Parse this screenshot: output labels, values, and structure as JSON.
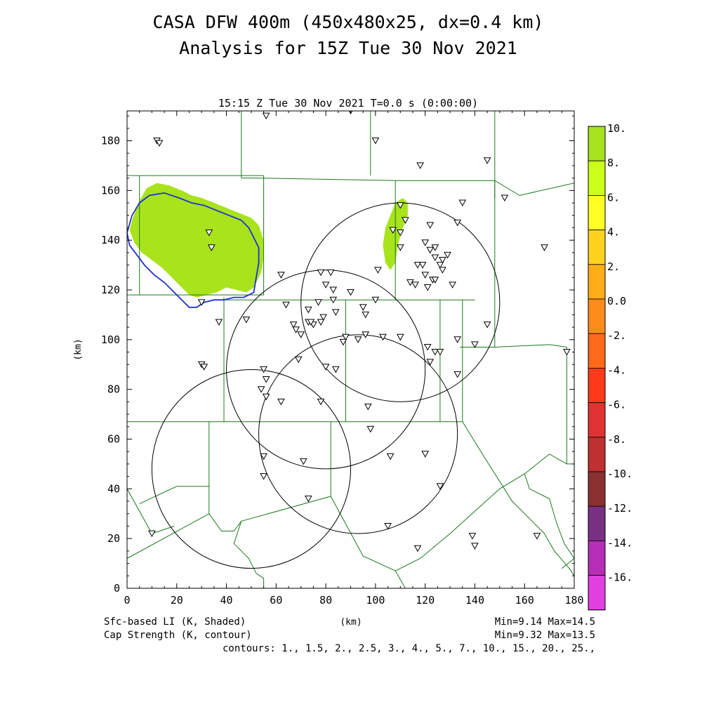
{
  "title_line1": "CASA DFW 400m (450x480x25, dx=0.4 km)",
  "title_line2": "Analysis for 15Z Tue 30 Nov 2021",
  "plot_time_label": "15:15 Z Tue 30 Nov 2021    T=0.0 s (0:00:00)",
  "footer": {
    "shaded_label": "Sfc-based LI (K, Shaded)",
    "contour_label": "Cap Strength (K, contour)",
    "x_unit_label": "(km)",
    "shaded_minmax": "Min=9.14 Max=14.5",
    "contour_minmax": "Min=9.32 Max=13.5",
    "contours_list": "contours: 1., 1.5, 2., 2.5, 3., 4., 5., 7., 10., 15., 20., 25.,"
  },
  "colors": {
    "shaded_fill": "#a8e31c",
    "cap_contour": "#1f2fd6",
    "county_lines": "#1b7a1b",
    "radar_rings": "#000000"
  },
  "chart_data": {
    "type": "map",
    "xlabel": "",
    "ylabel": "(km)",
    "xlim": [
      0,
      180
    ],
    "ylim": [
      0,
      192
    ],
    "x_ticks": [
      0,
      20,
      40,
      60,
      80,
      100,
      120,
      140,
      160,
      180
    ],
    "y_ticks": [
      0,
      20,
      40,
      60,
      80,
      100,
      120,
      140,
      160,
      180
    ],
    "colorbar": {
      "levels": [
        "10.",
        "8.",
        "6.",
        "4.",
        "2.",
        "0.0",
        "-2.",
        "-4.",
        "-6.",
        "-8.",
        "-10.",
        "-12.",
        "-14.",
        "-16."
      ],
      "colors": [
        "#a6e21e",
        "#ccff1a",
        "#ffff26",
        "#ffd21f",
        "#ffae1a",
        "#ff8c1a",
        "#ff6a1a",
        "#ff3a1a",
        "#e03232",
        "#bf3030",
        "#8a3030",
        "#7a3082",
        "#b52eb5",
        "#e040e0"
      ]
    },
    "radar_rings": [
      {
        "cx": 110,
        "cy": 115,
        "r": 40
      },
      {
        "cx": 80,
        "cy": 88,
        "r": 40
      },
      {
        "cx": 93,
        "cy": 62,
        "r": 40
      },
      {
        "cx": 50,
        "cy": 48,
        "r": 40
      }
    ],
    "shaded_areas": [
      {
        "value": 10,
        "points": [
          [
            2,
            148
          ],
          [
            5,
            156
          ],
          [
            8,
            161
          ],
          [
            12,
            163
          ],
          [
            17,
            162
          ],
          [
            22,
            160
          ],
          [
            26,
            158
          ],
          [
            30,
            157
          ],
          [
            35,
            155
          ],
          [
            40,
            153
          ],
          [
            45,
            151
          ],
          [
            50,
            149
          ],
          [
            53,
            146
          ],
          [
            55,
            140
          ],
          [
            55,
            133
          ],
          [
            54,
            127
          ],
          [
            51,
            121
          ],
          [
            48,
            119
          ],
          [
            44,
            120
          ],
          [
            40,
            121
          ],
          [
            36,
            119
          ],
          [
            32,
            118
          ],
          [
            28,
            117
          ],
          [
            25,
            118
          ],
          [
            22,
            121
          ],
          [
            18,
            125
          ],
          [
            14,
            129
          ],
          [
            10,
            132
          ],
          [
            6,
            135
          ],
          [
            3,
            139
          ],
          [
            1,
            144
          ]
        ]
      },
      {
        "value": 10,
        "points": [
          [
            106,
            150
          ],
          [
            108,
            155
          ],
          [
            111,
            157
          ],
          [
            113,
            155
          ],
          [
            113,
            150
          ],
          [
            111,
            145
          ],
          [
            109,
            138
          ],
          [
            108,
            131
          ],
          [
            106,
            128
          ],
          [
            104,
            131
          ],
          [
            103,
            138
          ],
          [
            104,
            145
          ]
        ]
      }
    ],
    "cap_contour": {
      "level": "10.",
      "points": [
        [
          0,
          143
        ],
        [
          2,
          150
        ],
        [
          5,
          155
        ],
        [
          9,
          158
        ],
        [
          15,
          159
        ],
        [
          21,
          157
        ],
        [
          26,
          155
        ],
        [
          31,
          154
        ],
        [
          36,
          152
        ],
        [
          41,
          150
        ],
        [
          46,
          148
        ],
        [
          49,
          145
        ],
        [
          51,
          141
        ],
        [
          53,
          137
        ],
        [
          53,
          131
        ],
        [
          52,
          125
        ],
        [
          51,
          119
        ],
        [
          47,
          117
        ],
        [
          43,
          117
        ],
        [
          39,
          116
        ],
        [
          35,
          116
        ],
        [
          31,
          115
        ],
        [
          28,
          113
        ],
        [
          25,
          113
        ],
        [
          22,
          116
        ],
        [
          19,
          119
        ],
        [
          15,
          123
        ],
        [
          11,
          126
        ],
        [
          7,
          130
        ],
        [
          4,
          134
        ],
        [
          1,
          138
        ],
        [
          0,
          143
        ]
      ]
    },
    "county_boundaries": [
      [
        [
          0,
          118
        ],
        [
          55,
          118
        ]
      ],
      [
        [
          0,
          166
        ],
        [
          55,
          166
        ]
      ],
      [
        [
          55,
          118
        ],
        [
          55,
          166
        ]
      ],
      [
        [
          5,
          166
        ],
        [
          5,
          118
        ]
      ],
      [
        [
          46,
          192
        ],
        [
          46,
          165
        ],
        [
          52,
          165
        ]
      ],
      [
        [
          52,
          165
        ],
        [
          108,
          164
        ],
        [
          108,
          116
        ]
      ],
      [
        [
          39,
          117
        ],
        [
          39,
          67
        ],
        [
          88,
          67
        ],
        [
          88,
          116
        ]
      ],
      [
        [
          39,
          116
        ],
        [
          140,
          116
        ]
      ],
      [
        [
          0,
          67
        ],
        [
          39,
          67
        ]
      ],
      [
        [
          88,
          67
        ],
        [
          135,
          67
        ]
      ],
      [
        [
          135,
          67
        ],
        [
          135,
          116
        ]
      ],
      [
        [
          108,
          164
        ],
        [
          148,
          164
        ],
        [
          158,
          158
        ],
        [
          180,
          163
        ]
      ],
      [
        [
          98,
          192
        ],
        [
          98,
          166
        ]
      ],
      [
        [
          148,
          192
        ],
        [
          148,
          157
        ]
      ],
      [
        [
          126,
          116
        ],
        [
          126,
          67
        ]
      ],
      [
        [
          148,
          164
        ],
        [
          148,
          97
        ],
        [
          170,
          98
        ],
        [
          177,
          97
        ]
      ],
      [
        [
          134,
          97
        ],
        [
          148,
          97
        ]
      ],
      [
        [
          177,
          97
        ],
        [
          177,
          50
        ],
        [
          180,
          50
        ]
      ],
      [
        [
          135,
          67
        ],
        [
          143,
          54
        ],
        [
          150,
          43
        ],
        [
          155,
          35
        ],
        [
          162,
          28
        ],
        [
          168,
          22
        ],
        [
          172,
          15
        ],
        [
          178,
          8
        ],
        [
          180,
          5
        ]
      ],
      [
        [
          33,
          67
        ],
        [
          33,
          41
        ],
        [
          20,
          41
        ],
        [
          5,
          34
        ]
      ],
      [
        [
          33,
          41
        ],
        [
          33,
          30
        ],
        [
          0,
          12
        ]
      ],
      [
        [
          33,
          30
        ],
        [
          38,
          23
        ],
        [
          43,
          23
        ],
        [
          46,
          27
        ],
        [
          82,
          37
        ],
        [
          95,
          13
        ],
        [
          108,
          7
        ]
      ],
      [
        [
          82,
          37
        ],
        [
          82,
          67
        ]
      ],
      [
        [
          46,
          27
        ],
        [
          43,
          18
        ],
        [
          49,
          12
        ],
        [
          52,
          6
        ],
        [
          55,
          4
        ],
        [
          55,
          0
        ]
      ],
      [
        [
          0,
          40
        ],
        [
          10,
          22
        ],
        [
          19,
          25
        ]
      ],
      [
        [
          108,
          7
        ],
        [
          118,
          12
        ],
        [
          130,
          22
        ],
        [
          140,
          31
        ],
        [
          150,
          40
        ],
        [
          160,
          46
        ],
        [
          170,
          54
        ],
        [
          177,
          50
        ]
      ],
      [
        [
          160,
          46
        ],
        [
          162,
          40
        ],
        [
          170,
          36
        ],
        [
          173,
          26
        ],
        [
          176,
          18
        ],
        [
          180,
          12
        ]
      ],
      [
        [
          108,
          7
        ],
        [
          112,
          0
        ]
      ],
      [
        [
          175,
          8
        ],
        [
          180,
          12
        ]
      ]
    ],
    "stations": [
      [
        12,
        180
      ],
      [
        13,
        179
      ],
      [
        56,
        190
      ],
      [
        90,
        192
      ],
      [
        100,
        180
      ],
      [
        118,
        170
      ],
      [
        145,
        172
      ],
      [
        152,
        157
      ],
      [
        135,
        155
      ],
      [
        110,
        154
      ],
      [
        112,
        148
      ],
      [
        122,
        146
      ],
      [
        107,
        144
      ],
      [
        133,
        147
      ],
      [
        110,
        143
      ],
      [
        110,
        137
      ],
      [
        120,
        139
      ],
      [
        122,
        136
      ],
      [
        124,
        137
      ],
      [
        129,
        134
      ],
      [
        127,
        132
      ],
      [
        124,
        133
      ],
      [
        126,
        130
      ],
      [
        117,
        130
      ],
      [
        119,
        130
      ],
      [
        120,
        126
      ],
      [
        127,
        128
      ],
      [
        123,
        124
      ],
      [
        114,
        123
      ],
      [
        116,
        122
      ],
      [
        121,
        121
      ],
      [
        124,
        124
      ],
      [
        131,
        122
      ],
      [
        101,
        128
      ],
      [
        100,
        116
      ],
      [
        82,
        127
      ],
      [
        78,
        127
      ],
      [
        80,
        122
      ],
      [
        83,
        120
      ],
      [
        83,
        116
      ],
      [
        90,
        119
      ],
      [
        95,
        113
      ],
      [
        96,
        110
      ],
      [
        84,
        111
      ],
      [
        79,
        109
      ],
      [
        77,
        115
      ],
      [
        73,
        112
      ],
      [
        64,
        114
      ],
      [
        67,
        106
      ],
      [
        68,
        104
      ],
      [
        70,
        102
      ],
      [
        73,
        107
      ],
      [
        75,
        106
      ],
      [
        74,
        107
      ],
      [
        78,
        107
      ],
      [
        88,
        101
      ],
      [
        87,
        99
      ],
      [
        93,
        100
      ],
      [
        96,
        102
      ],
      [
        103,
        101
      ],
      [
        110,
        101
      ],
      [
        121,
        97
      ],
      [
        124,
        95
      ],
      [
        126,
        95
      ],
      [
        133,
        100
      ],
      [
        140,
        98
      ],
      [
        145,
        106
      ],
      [
        122,
        91
      ],
      [
        133,
        86
      ],
      [
        80,
        89
      ],
      [
        84,
        88
      ],
      [
        69,
        92
      ],
      [
        55,
        88
      ],
      [
        56,
        84
      ],
      [
        54,
        80
      ],
      [
        56,
        77
      ],
      [
        62,
        75
      ],
      [
        78,
        75
      ],
      [
        97,
        73
      ],
      [
        98,
        64
      ],
      [
        55,
        53
      ],
      [
        71,
        51
      ],
      [
        106,
        53
      ],
      [
        120,
        54
      ],
      [
        126,
        41
      ],
      [
        55,
        45
      ],
      [
        73,
        36
      ],
      [
        105,
        25
      ],
      [
        117,
        16
      ],
      [
        139,
        21
      ],
      [
        140,
        17
      ],
      [
        165,
        21
      ],
      [
        10,
        22
      ],
      [
        30,
        90
      ],
      [
        31,
        89
      ],
      [
        37,
        107
      ],
      [
        48,
        108
      ],
      [
        62,
        126
      ],
      [
        30,
        115
      ],
      [
        33,
        143
      ],
      [
        34,
        137
      ],
      [
        168,
        137
      ],
      [
        177,
        95
      ]
    ]
  }
}
